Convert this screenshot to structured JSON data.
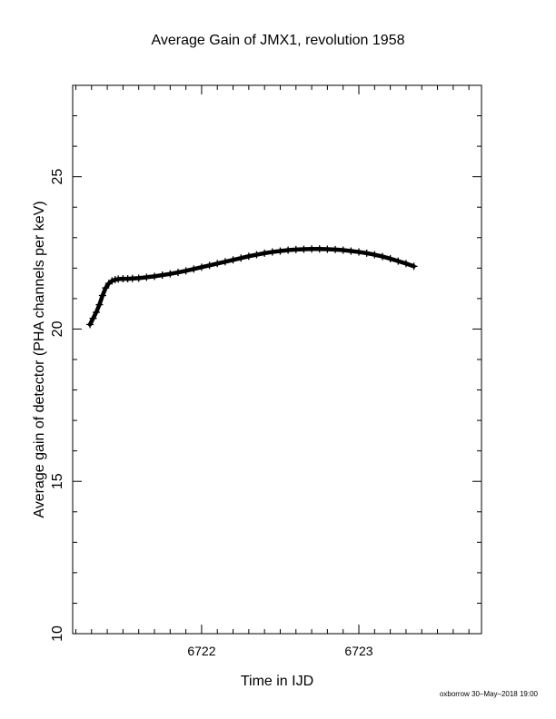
{
  "chart_data": {
    "type": "scatter",
    "title": "Average Gain of JMX1, revolution 1958",
    "xlabel": "Time in IJD",
    "ylabel": "Average gain of detector (PHA channels per keV)",
    "xlim": [
      6721.18,
      6723.78
    ],
    "ylim": [
      10,
      28
    ],
    "xticks_labeled": [
      6722,
      6723
    ],
    "xticks_labels": [
      "6722",
      "6723"
    ],
    "yticks_labeled": [
      10,
      15,
      20,
      25
    ],
    "yticks_labels": [
      "10",
      "15",
      "20",
      "25"
    ],
    "marker": "plus",
    "grid": false,
    "series": [
      {
        "x": [
          6721.29,
          6721.31,
          6721.33,
          6721.35,
          6721.37,
          6721.39,
          6721.41,
          6721.43,
          6721.45,
          6721.47,
          6721.5,
          6721.53,
          6721.56,
          6721.6,
          6721.65,
          6721.7,
          6721.75,
          6721.8,
          6721.85,
          6721.9,
          6721.95,
          6722.0,
          6722.05,
          6722.1,
          6722.15,
          6722.2,
          6722.25,
          6722.3,
          6722.35,
          6722.4,
          6722.45,
          6722.5,
          6722.55,
          6722.6,
          6722.65,
          6722.7,
          6722.75,
          6722.8,
          6722.85,
          6722.9,
          6722.95,
          6723.0,
          6723.05,
          6723.1,
          6723.15,
          6723.2,
          6723.25,
          6723.3,
          6723.35
        ],
        "y": [
          20.15,
          20.35,
          20.55,
          20.8,
          21.1,
          21.35,
          21.5,
          21.58,
          21.62,
          21.64,
          21.65,
          21.65,
          21.66,
          21.67,
          21.7,
          21.73,
          21.77,
          21.81,
          21.86,
          21.91,
          21.97,
          22.03,
          22.09,
          22.15,
          22.21,
          22.27,
          22.33,
          22.39,
          22.44,
          22.49,
          22.53,
          22.56,
          22.59,
          22.61,
          22.62,
          22.63,
          22.63,
          22.62,
          22.61,
          22.59,
          22.56,
          22.53,
          22.49,
          22.44,
          22.38,
          22.31,
          22.23,
          22.15,
          22.06
        ]
      }
    ]
  },
  "footer": "oxborrow 30–May–2018 19:00"
}
